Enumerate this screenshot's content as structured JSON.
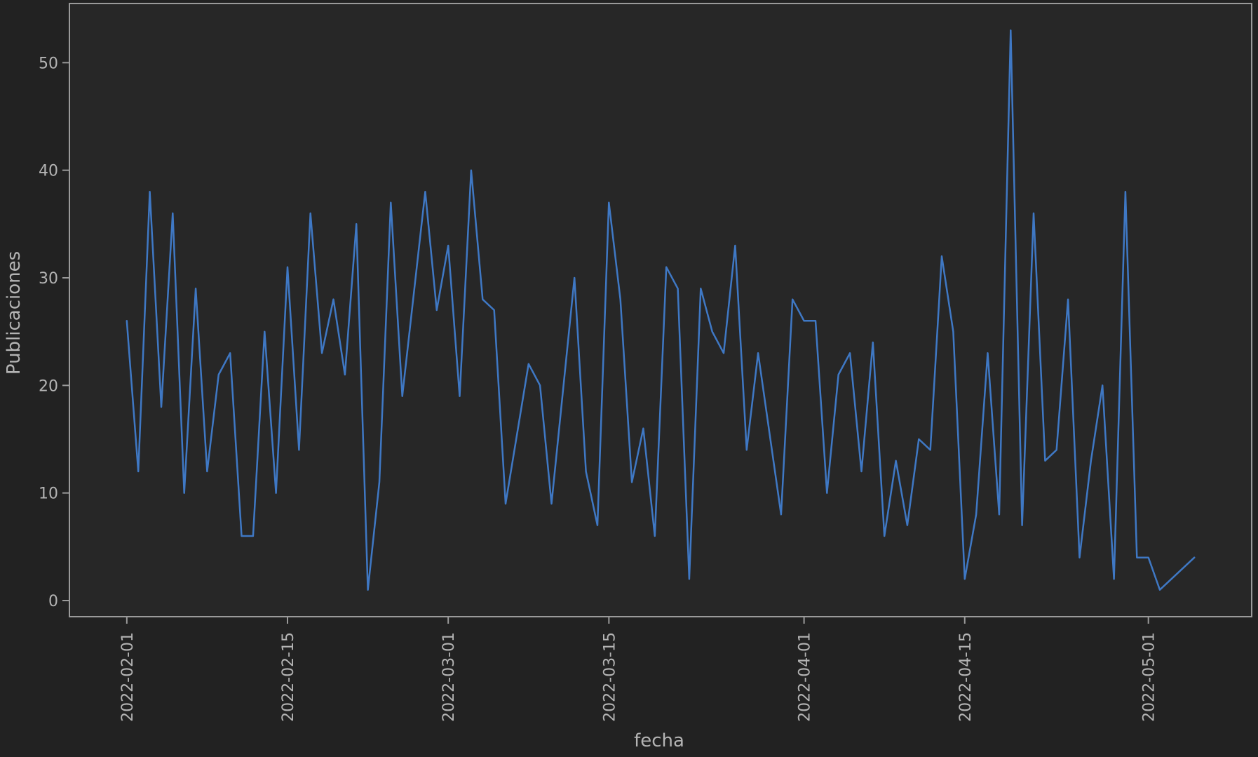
{
  "chart_data": {
    "type": "line",
    "title": "",
    "xlabel": "fecha",
    "ylabel": "Publicaciones",
    "ylim": [
      -1.5,
      55.5
    ],
    "xlim": [
      "2022-01-27",
      "2022-05-10"
    ],
    "x_ticks": [
      "2022-02-01",
      "2022-02-15",
      "2022-03-01",
      "2022-03-15",
      "2022-04-01",
      "2022-04-15",
      "2022-05-01"
    ],
    "y_ticks": [
      0,
      10,
      20,
      30,
      40,
      50
    ],
    "grid": false,
    "legend": "none",
    "colors": {
      "background": "#222222",
      "axes_face": "#272727",
      "spine": "#9a9a9a",
      "text": "#b4b4b4",
      "line": "#3f78c4"
    },
    "series": [
      {
        "color": "#3f78c4",
        "points": [
          [
            "2022-02-01",
            26
          ],
          [
            "2022-02-02",
            12
          ],
          [
            "2022-02-03",
            38
          ],
          [
            "2022-02-04",
            18
          ],
          [
            "2022-02-05",
            36
          ],
          [
            "2022-02-06",
            10
          ],
          [
            "2022-02-07",
            29
          ],
          [
            "2022-02-08",
            12
          ],
          [
            "2022-02-09",
            21
          ],
          [
            "2022-02-10",
            23
          ],
          [
            "2022-02-11",
            6
          ],
          [
            "2022-02-12",
            6
          ],
          [
            "2022-02-13",
            25
          ],
          [
            "2022-02-14",
            10
          ],
          [
            "2022-02-15",
            31
          ],
          [
            "2022-02-16",
            14
          ],
          [
            "2022-02-17",
            36
          ],
          [
            "2022-02-18",
            23
          ],
          [
            "2022-02-19",
            28
          ],
          [
            "2022-02-20",
            21
          ],
          [
            "2022-02-21",
            35
          ],
          [
            "2022-02-22",
            1
          ],
          [
            "2022-02-23",
            11
          ],
          [
            "2022-02-24",
            37
          ],
          [
            "2022-02-25",
            19
          ],
          [
            "2022-02-27",
            38
          ],
          [
            "2022-02-28",
            27
          ],
          [
            "2022-03-01",
            33
          ],
          [
            "2022-03-02",
            19
          ],
          [
            "2022-03-03",
            40
          ],
          [
            "2022-03-04",
            28
          ],
          [
            "2022-03-05",
            27
          ],
          [
            "2022-03-06",
            9
          ],
          [
            "2022-03-08",
            22
          ],
          [
            "2022-03-09",
            20
          ],
          [
            "2022-03-10",
            9
          ],
          [
            "2022-03-12",
            30
          ],
          [
            "2022-03-13",
            12
          ],
          [
            "2022-03-14",
            7
          ],
          [
            "2022-03-15",
            37
          ],
          [
            "2022-03-16",
            28
          ],
          [
            "2022-03-17",
            11
          ],
          [
            "2022-03-18",
            16
          ],
          [
            "2022-03-19",
            6
          ],
          [
            "2022-03-20",
            31
          ],
          [
            "2022-03-21",
            29
          ],
          [
            "2022-03-22",
            2
          ],
          [
            "2022-03-23",
            29
          ],
          [
            "2022-03-24",
            25
          ],
          [
            "2022-03-25",
            23
          ],
          [
            "2022-03-26",
            33
          ],
          [
            "2022-03-27",
            14
          ],
          [
            "2022-03-28",
            23
          ],
          [
            "2022-03-30",
            8
          ],
          [
            "2022-03-31",
            28
          ],
          [
            "2022-04-01",
            26
          ],
          [
            "2022-04-02",
            26
          ],
          [
            "2022-04-03",
            10
          ],
          [
            "2022-04-04",
            21
          ],
          [
            "2022-04-05",
            23
          ],
          [
            "2022-04-06",
            12
          ],
          [
            "2022-04-07",
            24
          ],
          [
            "2022-04-08",
            6
          ],
          [
            "2022-04-09",
            13
          ],
          [
            "2022-04-10",
            7
          ],
          [
            "2022-04-11",
            15
          ],
          [
            "2022-04-12",
            14
          ],
          [
            "2022-04-13",
            32
          ],
          [
            "2022-04-14",
            25
          ],
          [
            "2022-04-15",
            2
          ],
          [
            "2022-04-16",
            8
          ],
          [
            "2022-04-17",
            23
          ],
          [
            "2022-04-18",
            8
          ],
          [
            "2022-04-19",
            53
          ],
          [
            "2022-04-20",
            7
          ],
          [
            "2022-04-21",
            36
          ],
          [
            "2022-04-22",
            13
          ],
          [
            "2022-04-23",
            14
          ],
          [
            "2022-04-24",
            28
          ],
          [
            "2022-04-25",
            4
          ],
          [
            "2022-04-26",
            13
          ],
          [
            "2022-04-27",
            20
          ],
          [
            "2022-04-28",
            2
          ],
          [
            "2022-04-29",
            38
          ],
          [
            "2022-04-30",
            4
          ],
          [
            "2022-05-01",
            4
          ],
          [
            "2022-05-02",
            1
          ],
          [
            "2022-05-05",
            4
          ]
        ]
      }
    ]
  }
}
